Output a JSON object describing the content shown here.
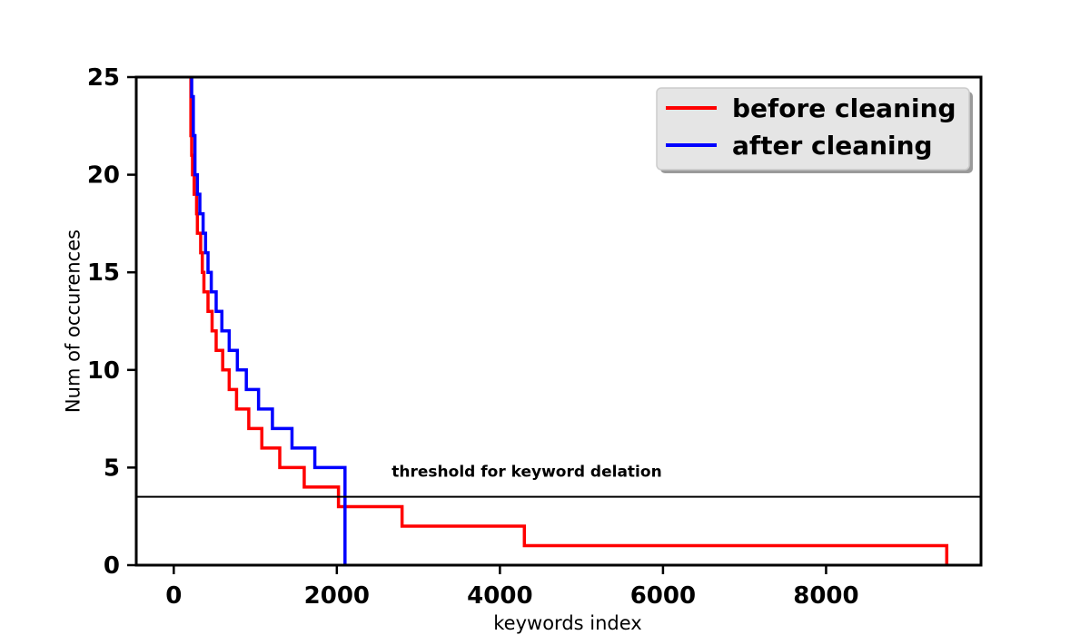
{
  "chart_data": {
    "type": "line",
    "style": "step",
    "xlabel": "keywords index",
    "ylabel": "Num of occurences",
    "xlim": [
      -460,
      9900
    ],
    "ylim": [
      0,
      25
    ],
    "xticks": [
      0,
      2000,
      4000,
      6000,
      8000
    ],
    "xtick_labels": [
      "0",
      "2000",
      "4000",
      "6000",
      "8000"
    ],
    "yticks": [
      0,
      5,
      10,
      15,
      20,
      25
    ],
    "ytick_labels": [
      "0",
      "5",
      "10",
      "15",
      "20",
      "25"
    ],
    "grid": false,
    "legend_position": "top-right",
    "series": [
      {
        "name": "before cleaning",
        "color": "#ff0000",
        "points": [
          [
            200,
            25
          ],
          [
            210,
            22
          ],
          [
            220,
            21
          ],
          [
            230,
            20
          ],
          [
            250,
            19
          ],
          [
            280,
            18
          ],
          [
            290,
            17
          ],
          [
            330,
            16
          ],
          [
            350,
            15
          ],
          [
            370,
            14
          ],
          [
            420,
            13
          ],
          [
            470,
            12
          ],
          [
            520,
            11
          ],
          [
            600,
            10
          ],
          [
            680,
            9
          ],
          [
            770,
            8
          ],
          [
            920,
            7
          ],
          [
            1080,
            6
          ],
          [
            1300,
            5
          ],
          [
            1600,
            4
          ],
          [
            2020,
            3
          ],
          [
            2800,
            2
          ],
          [
            4300,
            1
          ],
          [
            9480,
            1
          ],
          [
            9480,
            0
          ]
        ]
      },
      {
        "name": "after cleaning",
        "color": "#0000ff",
        "points": [
          [
            200,
            25
          ],
          [
            220,
            24
          ],
          [
            240,
            22
          ],
          [
            260,
            20
          ],
          [
            290,
            19
          ],
          [
            320,
            18
          ],
          [
            360,
            17
          ],
          [
            390,
            16
          ],
          [
            420,
            15
          ],
          [
            460,
            14
          ],
          [
            520,
            13
          ],
          [
            590,
            12
          ],
          [
            680,
            11
          ],
          [
            780,
            10
          ],
          [
            890,
            9
          ],
          [
            1040,
            8
          ],
          [
            1210,
            7
          ],
          [
            1450,
            6
          ],
          [
            1730,
            5
          ],
          [
            2100,
            4
          ],
          [
            2100,
            0
          ]
        ]
      }
    ],
    "threshold": {
      "y": 3.5,
      "label": "threshold for keyword delation"
    }
  }
}
